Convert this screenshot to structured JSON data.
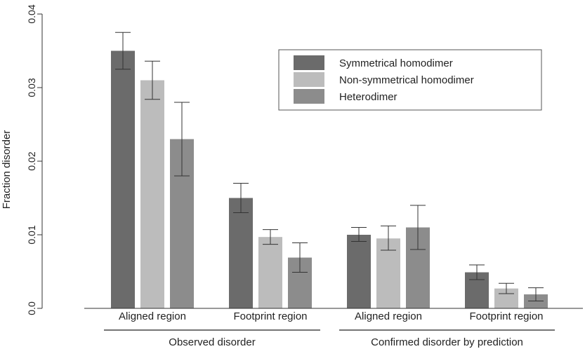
{
  "chart_data": {
    "type": "bar",
    "ylabel": "Fraction disorder",
    "ylim": [
      0,
      0.04
    ],
    "yticks": [
      "0.0",
      "0.01",
      "0.02",
      "0.03",
      "0.04"
    ],
    "categories": [
      "Aligned region",
      "Footprint region",
      "Aligned region",
      "Footprint region"
    ],
    "groups": [
      "Observed disorder",
      "Confirmed disorder by prediction"
    ],
    "legend_position": "top-right",
    "series": [
      {
        "name": "Symmetrical homodimer",
        "color": "#6b6b6b",
        "values": [
          0.035,
          0.015,
          0.01,
          0.0049
        ],
        "err_low": [
          0.0325,
          0.013,
          0.0091,
          0.0039
        ],
        "err_high": [
          0.0375,
          0.017,
          0.011,
          0.0059
        ]
      },
      {
        "name": "Non-symmetrical homodimer",
        "color": "#bcbcbc",
        "values": [
          0.031,
          0.0097,
          0.0095,
          0.0027
        ],
        "err_low": [
          0.0284,
          0.0087,
          0.0079,
          0.002
        ],
        "err_high": [
          0.0336,
          0.0107,
          0.0112,
          0.0034
        ]
      },
      {
        "name": "Heterodimer",
        "color": "#8c8c8c",
        "values": [
          0.023,
          0.0069,
          0.011,
          0.0019
        ],
        "err_low": [
          0.018,
          0.0049,
          0.008,
          0.001
        ],
        "err_high": [
          0.028,
          0.0089,
          0.014,
          0.0028
        ]
      }
    ]
  }
}
